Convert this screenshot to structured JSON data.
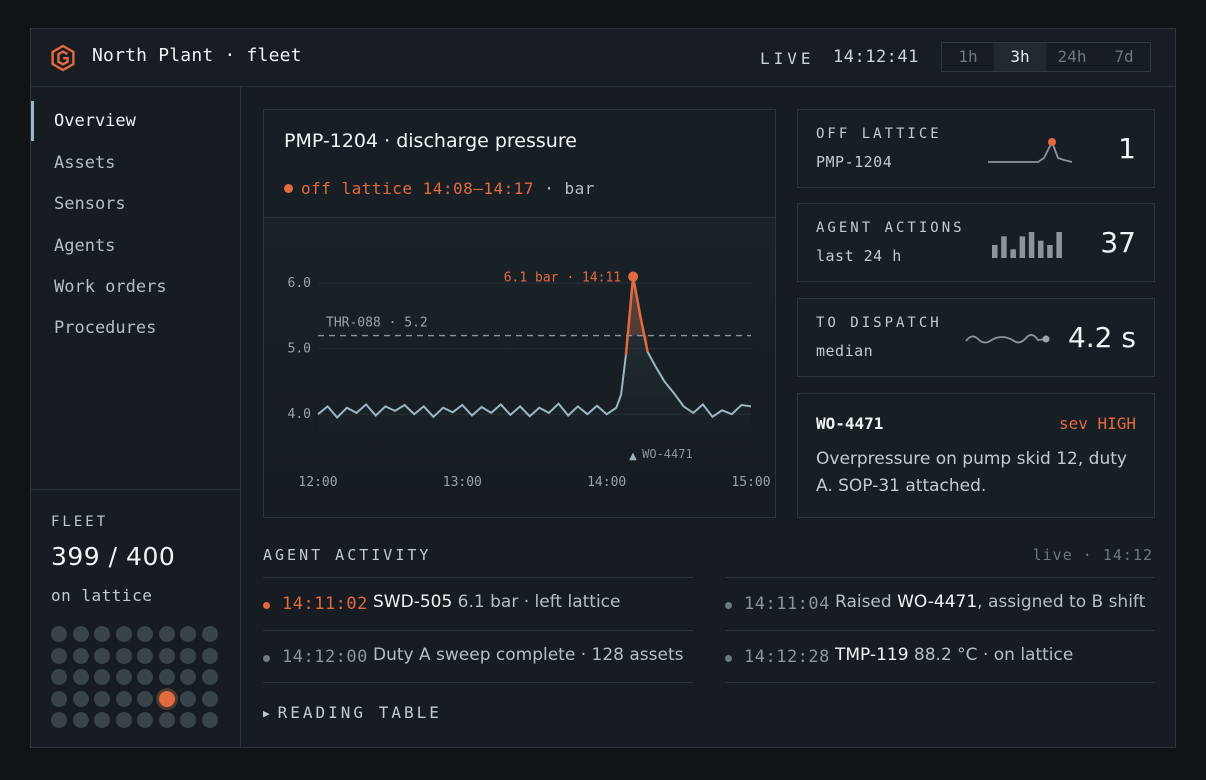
{
  "header": {
    "title": "North Plant · fleet",
    "live_label": "LIVE",
    "clock": "14:12:41",
    "ranges": [
      {
        "label": "1h",
        "active": false
      },
      {
        "label": "3h",
        "active": true
      },
      {
        "label": "24h",
        "active": false
      },
      {
        "label": "7d",
        "active": false
      }
    ]
  },
  "sidebar": {
    "items": [
      {
        "label": "Overview",
        "active": true
      },
      {
        "label": "Assets",
        "active": false
      },
      {
        "label": "Sensors",
        "active": false
      },
      {
        "label": "Agents",
        "active": false
      },
      {
        "label": "Work orders",
        "active": false
      },
      {
        "label": "Procedures",
        "active": false
      }
    ],
    "fleet": {
      "label": "FLEET",
      "count": "399 / 400",
      "sub": "on lattice",
      "grid_cols": 8,
      "grid_rows": 5,
      "alert_index": 29
    }
  },
  "chart_card": {
    "title": "PMP-1204 · discharge pressure",
    "status_text": "off lattice 14:08–14:17",
    "status_unit": "· bar"
  },
  "chart_data": {
    "type": "line",
    "x_ticks": [
      "12:00",
      "13:00",
      "14:00",
      "15:00"
    ],
    "x_range_min": [
      0,
      180
    ],
    "y_ticks": [
      "4.0",
      "5.0",
      "6.0"
    ],
    "ylim": [
      3.5,
      6.2
    ],
    "threshold": {
      "label": "THR-088 · 5.2",
      "value": 5.2
    },
    "peak": {
      "label": "6.1 bar · 14:11",
      "x_min": 131,
      "value": 6.1
    },
    "marker": {
      "label": "WO-4471",
      "x_min": 131
    },
    "off_lattice_window_min": [
      128,
      137
    ],
    "series": [
      {
        "points": [
          [
            0,
            4.0
          ],
          [
            4,
            4.12
          ],
          [
            8,
            3.95
          ],
          [
            12,
            4.1
          ],
          [
            16,
            4.02
          ],
          [
            20,
            4.15
          ],
          [
            24,
            3.98
          ],
          [
            28,
            4.12
          ],
          [
            32,
            4.05
          ],
          [
            36,
            4.14
          ],
          [
            40,
            4.0
          ],
          [
            44,
            4.12
          ],
          [
            48,
            3.96
          ],
          [
            52,
            4.1
          ],
          [
            56,
            4.03
          ],
          [
            60,
            4.14
          ],
          [
            64,
            3.98
          ],
          [
            68,
            4.11
          ],
          [
            72,
            4.02
          ],
          [
            76,
            4.15
          ],
          [
            80,
            3.99
          ],
          [
            84,
            4.12
          ],
          [
            88,
            3.97
          ],
          [
            92,
            4.1
          ],
          [
            96,
            4.02
          ],
          [
            100,
            4.16
          ],
          [
            104,
            3.98
          ],
          [
            108,
            4.12
          ],
          [
            112,
            4.0
          ],
          [
            116,
            4.13
          ],
          [
            120,
            4.0
          ],
          [
            124,
            4.1
          ],
          [
            126,
            4.3
          ],
          [
            128,
            4.9
          ],
          [
            131,
            6.1
          ],
          [
            134,
            5.5
          ],
          [
            137,
            4.95
          ],
          [
            140,
            4.75
          ],
          [
            144,
            4.5
          ],
          [
            148,
            4.32
          ],
          [
            152,
            4.12
          ],
          [
            156,
            4.02
          ],
          [
            160,
            4.15
          ],
          [
            164,
            3.96
          ],
          [
            168,
            4.06
          ],
          [
            172,
            4.0
          ],
          [
            176,
            4.14
          ],
          [
            180,
            4.12
          ]
        ]
      }
    ]
  },
  "kpis": [
    {
      "label": "OFF LATTICE",
      "sub": "PMP-1204",
      "value": "1"
    },
    {
      "label": "AGENT ACTIONS",
      "sub": "last 24 h",
      "value": "37",
      "bars": [
        3,
        5,
        2,
        5,
        6,
        4,
        3,
        6
      ]
    },
    {
      "label": "TO DISPATCH",
      "sub": "median",
      "value": "4.2 s"
    }
  ],
  "work_order": {
    "id": "WO-4471",
    "severity": "sev HIGH",
    "text": "Overpressure on pump skid 12, duty A. SOP-31 attached."
  },
  "activity": {
    "title": "AGENT ACTIVITY",
    "live": "live · 14:12",
    "rows": [
      {
        "time": "14:11:02",
        "hot": true,
        "strong": "SWD-505",
        "rest": " 6.1 bar · left lattice"
      },
      {
        "time": "14:11:04",
        "hot": false,
        "pre": "Raised ",
        "strong": "WO-4471",
        "rest": ", assigned to B shift"
      },
      {
        "time": "14:12:00",
        "hot": false,
        "pre": "Duty A sweep complete · 128 assets"
      },
      {
        "time": "14:12:28",
        "hot": false,
        "strong": "TMP-119",
        "rest": " 88.2 °C · on lattice"
      }
    ],
    "toggle": "READING TABLE"
  }
}
